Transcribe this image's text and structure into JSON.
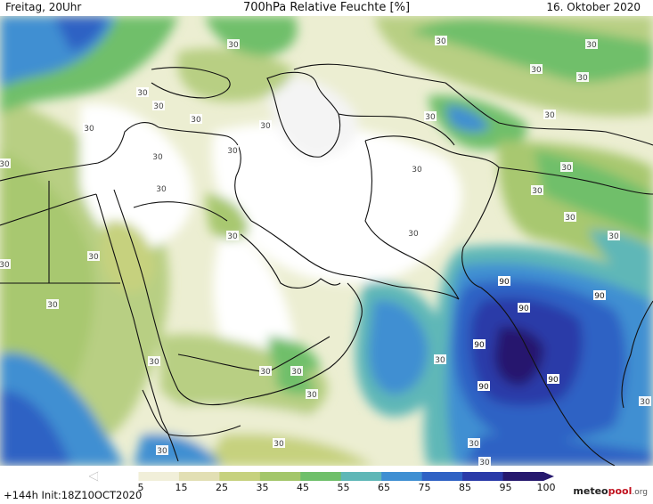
{
  "header": {
    "left": "Freitag, 20Uhr",
    "title": "700hPa Relative Feuchte [%]",
    "right": "16. Oktober 2020"
  },
  "footer": {
    "run_info": "+144h  Init:18Z10OCT2020",
    "logo_part1": "meteo",
    "logo_part2": "pool",
    "logo_part3": ".org"
  },
  "colorbar": {
    "labels": [
      "5",
      "15",
      "25",
      "35",
      "45",
      "55",
      "65",
      "75",
      "85",
      "95",
      "100"
    ],
    "colors": [
      "#ffffff",
      "#f1efd9",
      "#e2dfb4",
      "#c6d17e",
      "#a3c66a",
      "#6fbf6a",
      "#5fb7b7",
      "#3f8fd2",
      "#2f62c4",
      "#2a3aa8",
      "#26196e"
    ]
  },
  "map": {
    "contour_labels_30": [
      "30",
      "30",
      "30",
      "30",
      "30",
      "30",
      "30",
      "30",
      "30",
      "30",
      "30",
      "30",
      "30",
      "30",
      "30",
      "30",
      "30",
      "30",
      "30",
      "30",
      "30",
      "30",
      "30",
      "30",
      "30",
      "30",
      "30",
      "30",
      "30",
      "30",
      "30",
      "30",
      "30",
      "30",
      "30",
      "30"
    ],
    "contour_labels_90": [
      "90",
      "90",
      "90",
      "90",
      "90",
      "90"
    ]
  }
}
